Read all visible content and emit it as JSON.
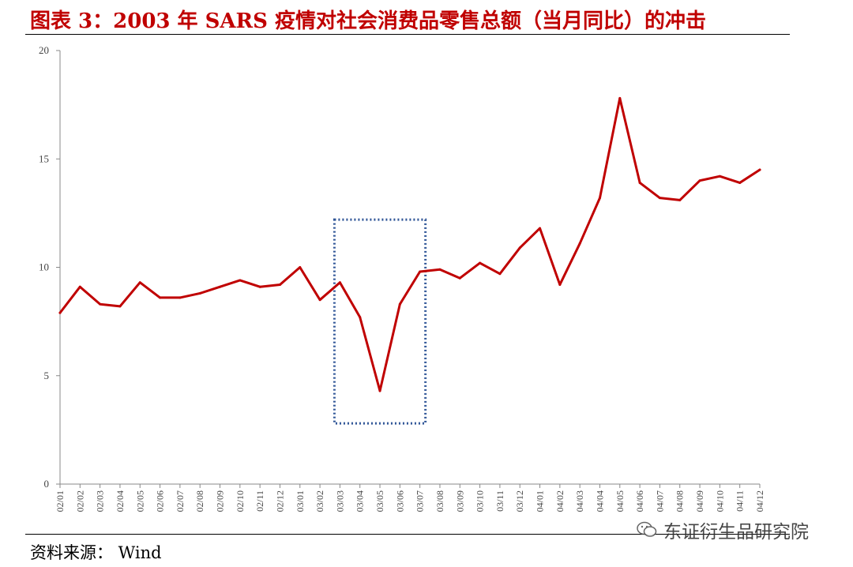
{
  "figure": {
    "title": "图表 3：2003 年 SARS 疫情对社会消费品零售总额（当月同比）的冲击",
    "source": "资料来源：  Wind",
    "watermark": "东证衍生品研究院"
  },
  "colors": {
    "title": "#c00000",
    "line": "#c00000",
    "highlight_box": "#2f5597",
    "axis": "#888888"
  },
  "chart_data": {
    "type": "line",
    "title": "图表 3：2003 年 SARS 疫情对社会消费品零售总额（当月同比）的冲击",
    "xlabel": "",
    "ylabel": "",
    "ylim": [
      0,
      20
    ],
    "yticks": [
      0,
      5,
      10,
      15,
      20
    ],
    "grid": false,
    "legend": "none",
    "categories": [
      "02/01",
      "02/02",
      "02/03",
      "02/04",
      "02/05",
      "02/06",
      "02/07",
      "02/08",
      "02/09",
      "02/10",
      "02/11",
      "02/12",
      "03/01",
      "03/02",
      "03/03",
      "03/04",
      "03/05",
      "03/06",
      "03/07",
      "03/08",
      "03/09",
      "03/10",
      "03/11",
      "03/12",
      "04/01",
      "04/02",
      "04/03",
      "04/04",
      "04/05",
      "04/06",
      "04/07",
      "04/08",
      "04/09",
      "04/10",
      "04/11",
      "04/12"
    ],
    "series": [
      {
        "name": "",
        "values": [
          7.9,
          9.1,
          8.3,
          8.2,
          9.3,
          8.6,
          8.6,
          8.8,
          9.1,
          9.4,
          9.1,
          9.2,
          10.0,
          8.5,
          9.3,
          7.7,
          4.3,
          8.3,
          9.8,
          9.9,
          9.5,
          10.2,
          9.7,
          10.9,
          11.8,
          9.2,
          11.1,
          13.2,
          17.8,
          13.9,
          13.2,
          13.1,
          14.0,
          14.2,
          13.9,
          14.5
        ]
      }
    ],
    "annotations": [
      {
        "type": "dotted-box",
        "x_from": "03/03",
        "x_to": "03/07",
        "y_from": 2.8,
        "y_to": 12.2
      }
    ]
  }
}
